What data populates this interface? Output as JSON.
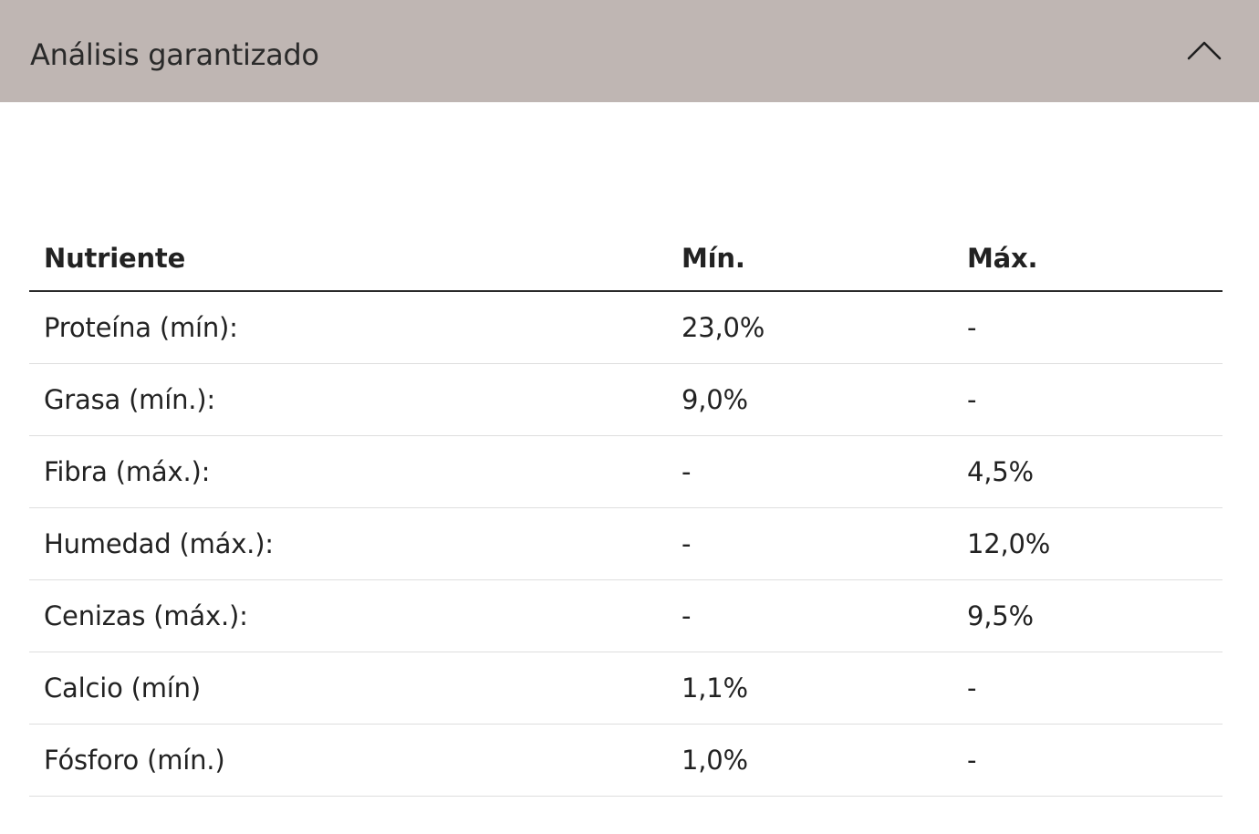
{
  "accordion": {
    "title": "Análisis garantizado",
    "toggle_icon": "chevron-up-icon",
    "expanded": true
  },
  "table": {
    "headers": [
      "Nutriente",
      "Mín.",
      "Máx."
    ],
    "rows": [
      {
        "nutrient": "Proteína (mín):",
        "min": "23,0%",
        "max": "-"
      },
      {
        "nutrient": "Grasa (mín.):",
        "min": "9,0%",
        "max": "-"
      },
      {
        "nutrient": "Fibra (máx.):",
        "min": "-",
        "max": "4,5%"
      },
      {
        "nutrient": "Humedad (máx.):",
        "min": "-",
        "max": "12,0%"
      },
      {
        "nutrient": "Cenizas (máx.):",
        "min": "-",
        "max": "9,5%"
      },
      {
        "nutrient": "Calcio (mín)",
        "min": "1,1%",
        "max": "-"
      },
      {
        "nutrient": "Fósforo (mín.)",
        "min": "1,0%",
        "max": "-"
      }
    ]
  },
  "colors": {
    "header_background": "#bfb6b3",
    "text": "#222222",
    "rule_strong": "#2a2a2a",
    "rule_light": "#dedede"
  }
}
